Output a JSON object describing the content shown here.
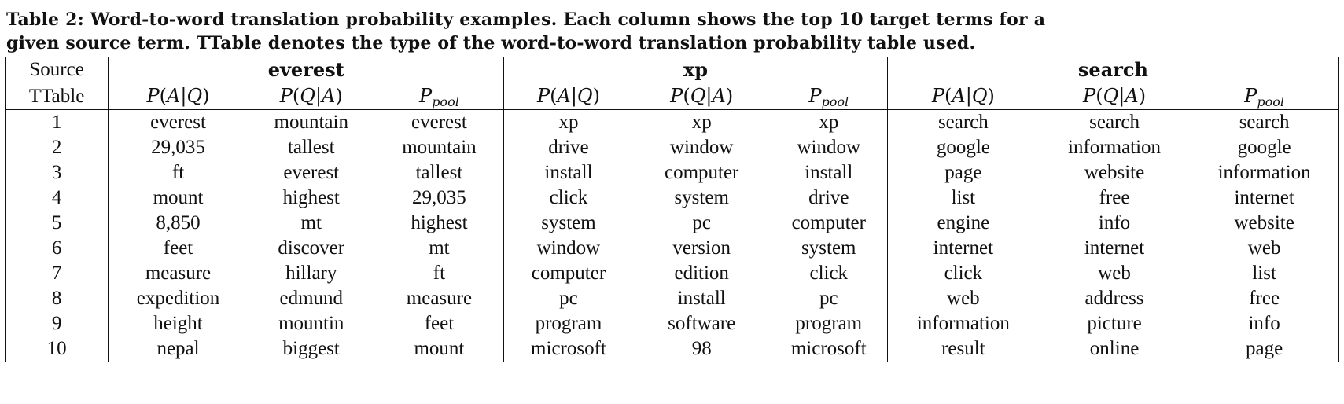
{
  "caption": {
    "line1": "Table 2: Word-to-word translation probability examples. Each column shows the top 10 target terms for a",
    "line2": "given source term. TTable denotes the type of the word-to-word translation probability table used."
  },
  "table": {
    "source_label": "Source",
    "ttable_label": "TTable",
    "sources": [
      "everest",
      "xp",
      "search"
    ],
    "ttypes": [
      {
        "letter": "P",
        "paren_open": "(",
        "arg1": "A",
        "bar": "|",
        "arg2": "Q",
        "paren_close": ")"
      },
      {
        "letter": "P",
        "paren_open": "(",
        "arg1": "Q",
        "bar": "|",
        "arg2": "A",
        "paren_close": ")"
      },
      {
        "letter": "P",
        "sub": "pool"
      }
    ],
    "rows": [
      {
        "rank": "1",
        "cells": [
          "everest",
          "mountain",
          "everest",
          "xp",
          "xp",
          "xp",
          "search",
          "search",
          "search"
        ]
      },
      {
        "rank": "2",
        "cells": [
          "29,035",
          "tallest",
          "mountain",
          "drive",
          "window",
          "window",
          "google",
          "information",
          "google"
        ]
      },
      {
        "rank": "3",
        "cells": [
          "ft",
          "everest",
          "tallest",
          "install",
          "computer",
          "install",
          "page",
          "website",
          "information"
        ]
      },
      {
        "rank": "4",
        "cells": [
          "mount",
          "highest",
          "29,035",
          "click",
          "system",
          "drive",
          "list",
          "free",
          "internet"
        ]
      },
      {
        "rank": "5",
        "cells": [
          "8,850",
          "mt",
          "highest",
          "system",
          "pc",
          "computer",
          "engine",
          "info",
          "website"
        ]
      },
      {
        "rank": "6",
        "cells": [
          "feet",
          "discover",
          "mt",
          "window",
          "version",
          "system",
          "internet",
          "internet",
          "web"
        ]
      },
      {
        "rank": "7",
        "cells": [
          "measure",
          "hillary",
          "ft",
          "computer",
          "edition",
          "click",
          "click",
          "web",
          "list"
        ]
      },
      {
        "rank": "8",
        "cells": [
          "expedition",
          "edmund",
          "measure",
          "pc",
          "install",
          "pc",
          "web",
          "address",
          "free"
        ]
      },
      {
        "rank": "9",
        "cells": [
          "height",
          "mountin",
          "feet",
          "program",
          "software",
          "program",
          "information",
          "picture",
          "info"
        ]
      },
      {
        "rank": "10",
        "cells": [
          "nepal",
          "biggest",
          "mount",
          "microsoft",
          "98",
          "microsoft",
          "result",
          "online",
          "page"
        ]
      }
    ]
  }
}
